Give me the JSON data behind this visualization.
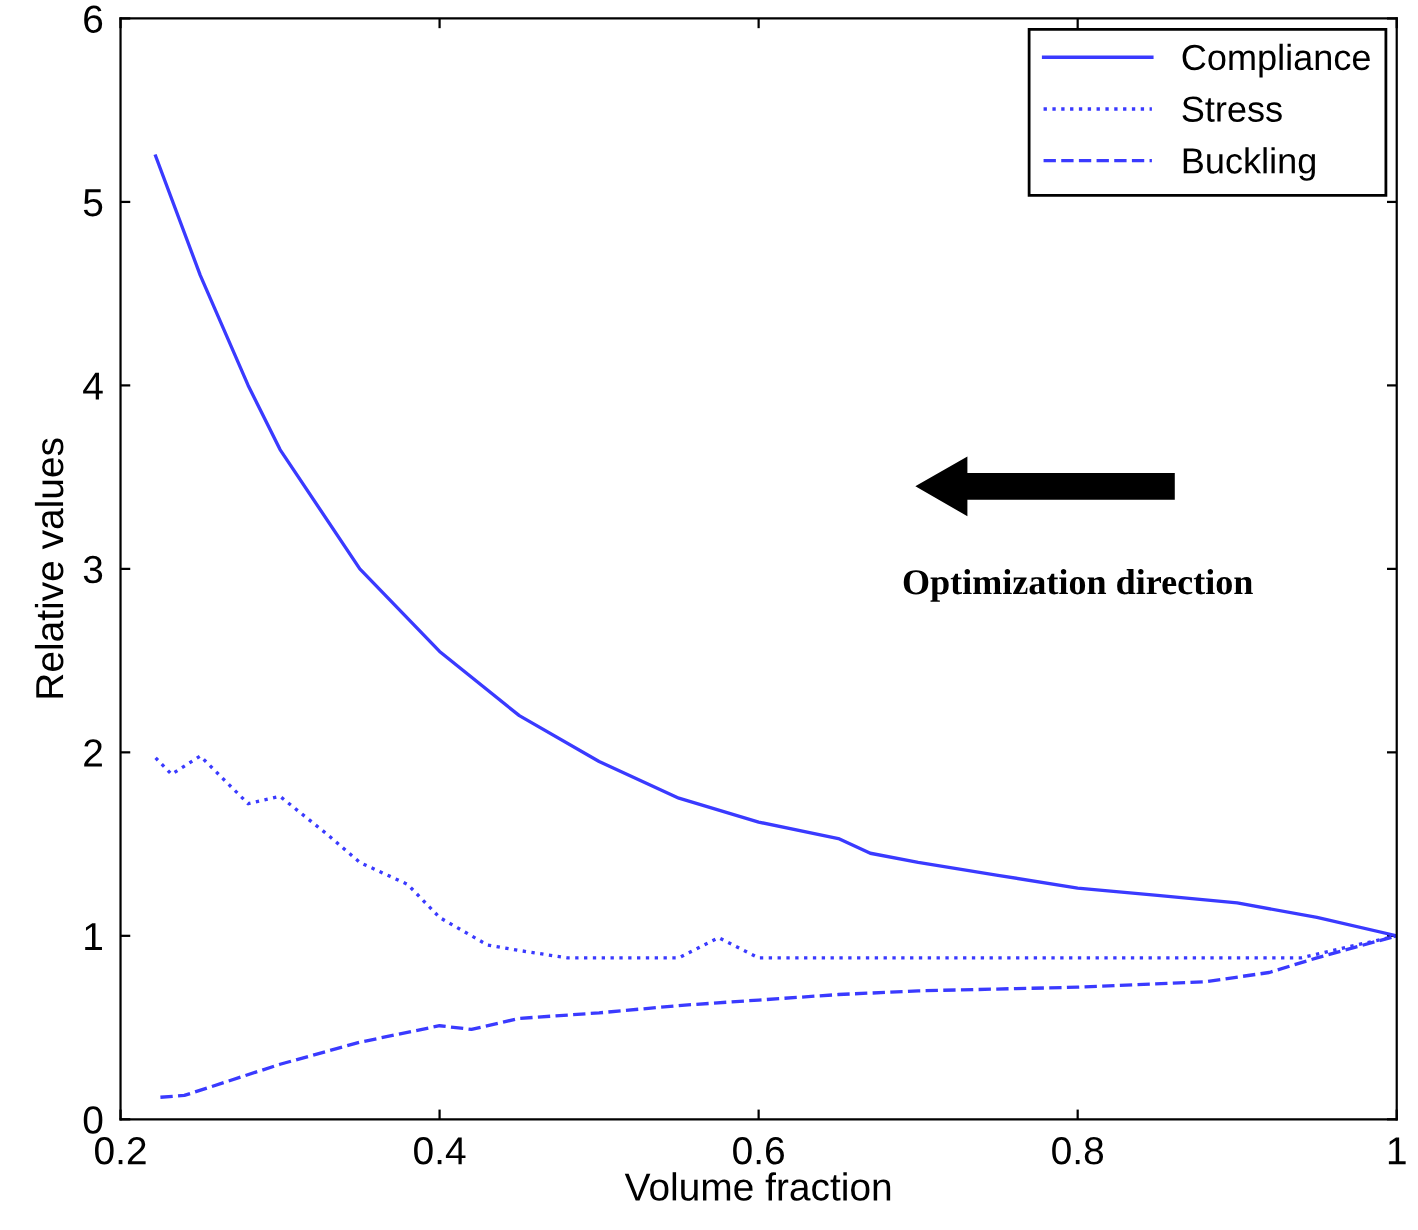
{
  "chart_data": {
    "type": "line",
    "xlabel": "Volume fraction",
    "ylabel": "Relative values",
    "xlim": [
      0.2,
      1
    ],
    "ylim": [
      0,
      6
    ],
    "xticks": [
      0.2,
      0.4,
      0.6,
      0.8,
      1
    ],
    "yticks": [
      0,
      1,
      2,
      3,
      4,
      5,
      6
    ],
    "grid": false,
    "legend": "top right",
    "annotations": [
      "Optimization direction"
    ],
    "series": [
      {
        "name": "Compliance",
        "color": "#3a3aff",
        "line_style": "solid",
        "x": [
          0.222,
          0.25,
          0.28,
          0.3,
          0.35,
          0.4,
          0.45,
          0.5,
          0.55,
          0.6,
          0.65,
          0.67,
          0.7,
          0.75,
          0.8,
          0.85,
          0.9,
          0.95,
          1.0
        ],
        "values": [
          5.25,
          4.6,
          4.0,
          3.65,
          3.0,
          2.55,
          2.2,
          1.95,
          1.75,
          1.62,
          1.53,
          1.45,
          1.4,
          1.33,
          1.26,
          1.22,
          1.18,
          1.1,
          1.0
        ]
      },
      {
        "name": "Stress",
        "color": "#3a3aff",
        "line_style": "dotted",
        "x": [
          0.222,
          0.232,
          0.25,
          0.28,
          0.3,
          0.33,
          0.35,
          0.38,
          0.4,
          0.43,
          0.45,
          0.48,
          0.55,
          0.575,
          0.6,
          0.94,
          1.0
        ],
        "values": [
          1.97,
          1.88,
          1.98,
          1.72,
          1.76,
          1.55,
          1.4,
          1.28,
          1.1,
          0.95,
          0.92,
          0.88,
          0.88,
          0.99,
          0.88,
          0.88,
          1.0
        ]
      },
      {
        "name": "Buckling",
        "color": "#3a3aff",
        "line_style": "dashed",
        "x": [
          0.225,
          0.24,
          0.3,
          0.35,
          0.4,
          0.42,
          0.45,
          0.5,
          0.55,
          0.6,
          0.65,
          0.7,
          0.8,
          0.88,
          0.92,
          0.95,
          1.0
        ],
        "values": [
          0.12,
          0.13,
          0.3,
          0.42,
          0.51,
          0.49,
          0.55,
          0.58,
          0.62,
          0.65,
          0.68,
          0.7,
          0.72,
          0.75,
          0.8,
          0.88,
          1.0
        ]
      }
    ]
  }
}
